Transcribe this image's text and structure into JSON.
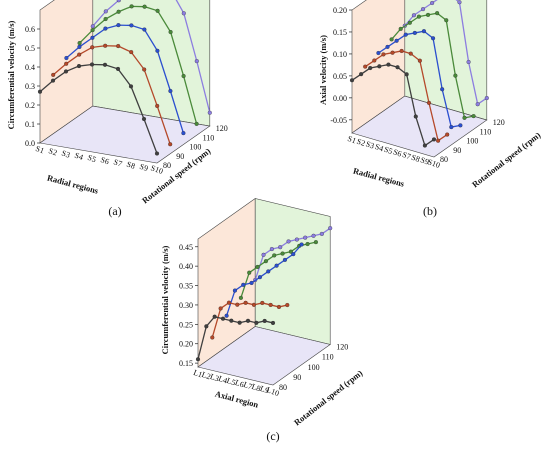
{
  "panels": [
    {
      "caption": "(a)",
      "title": "",
      "type": "line",
      "zlabel": "Circumferential velocity (m/s)",
      "xlabel": "Radial regions",
      "ylabel": "Rotational speed (rpm)",
      "zticks": [
        "0.0",
        "0.1",
        "0.2",
        "0.3",
        "0.4",
        "0.5",
        "0.6"
      ],
      "zlim": [
        0,
        0.7
      ],
      "xticks": [
        "S1",
        "S2",
        "S3",
        "S4",
        "S5",
        "S6",
        "S7",
        "S8",
        "S9",
        "S10"
      ],
      "yticks": [
        "80",
        "90",
        "100",
        "110",
        "120"
      ],
      "series": [
        {
          "rpm": 80,
          "color": "#3f3f3f",
          "values": [
            0.27,
            0.34,
            0.4,
            0.44,
            0.46,
            0.47,
            0.46,
            0.38,
            0.22,
            0.05
          ]
        },
        {
          "rpm": 90,
          "color": "#b5492a",
          "values": [
            0.31,
            0.38,
            0.44,
            0.49,
            0.51,
            0.52,
            0.5,
            0.42,
            0.24,
            0.05
          ]
        },
        {
          "rpm": 100,
          "color": "#2b4fcf",
          "values": [
            0.35,
            0.42,
            0.48,
            0.54,
            0.57,
            0.58,
            0.57,
            0.47,
            0.27,
            0.06
          ]
        },
        {
          "rpm": 110,
          "color": "#4a8a3a",
          "values": [
            0.38,
            0.46,
            0.53,
            0.58,
            0.62,
            0.63,
            0.62,
            0.52,
            0.3,
            0.06
          ]
        },
        {
          "rpm": 120,
          "color": "#8c7de0",
          "values": [
            0.42,
            0.51,
            0.58,
            0.64,
            0.68,
            0.69,
            0.68,
            0.57,
            0.33,
            0.07
          ]
        }
      ]
    },
    {
      "caption": "(b)",
      "title": "",
      "type": "line",
      "zlabel": "Axial velocity (m/s)",
      "xlabel": "Radial regions",
      "ylabel": "Rotational speed (rpm)",
      "zticks": [
        "-0.05",
        "0.00",
        "0.05",
        "0.10",
        "0.15",
        "0.20"
      ],
      "zlim": [
        -0.08,
        0.2
      ],
      "xticks": [
        "S1",
        "S2",
        "S3",
        "S4",
        "S5",
        "S6",
        "S7",
        "S8",
        "S9",
        "S10"
      ],
      "yticks": [
        "80",
        "90",
        "100",
        "110",
        "120"
      ],
      "series": [
        {
          "rpm": 80,
          "color": "#3f3f3f",
          "values": [
            0.04,
            0.06,
            0.08,
            0.09,
            0.1,
            0.1,
            0.09,
            0.0,
            -0.06,
            -0.04
          ]
        },
        {
          "rpm": 90,
          "color": "#b5492a",
          "values": [
            0.05,
            0.07,
            0.09,
            0.1,
            0.11,
            0.11,
            0.1,
            0.01,
            -0.07,
            -0.05
          ]
        },
        {
          "rpm": 100,
          "color": "#2b4fcf",
          "values": [
            0.06,
            0.08,
            0.1,
            0.12,
            0.13,
            0.14,
            0.13,
            0.02,
            -0.06,
            -0.05
          ]
        },
        {
          "rpm": 110,
          "color": "#4a8a3a",
          "values": [
            0.07,
            0.1,
            0.12,
            0.14,
            0.15,
            0.16,
            0.15,
            0.03,
            -0.06,
            -0.05
          ]
        },
        {
          "rpm": 120,
          "color": "#8c7de0",
          "values": [
            0.08,
            0.11,
            0.13,
            0.15,
            0.17,
            0.18,
            0.17,
            0.04,
            -0.05,
            -0.03
          ]
        }
      ]
    },
    {
      "caption": "(c)",
      "title": "",
      "type": "line",
      "zlabel": "Circumferential velocity (m/s)",
      "xlabel": "Axial region",
      "ylabel": "Rotational speed (rpm)",
      "zticks": [
        "0.15",
        "0.20",
        "0.25",
        "0.30",
        "0.35",
        "0.40",
        "0.45"
      ],
      "zlim": [
        0.14,
        0.47
      ],
      "xticks": [
        "L1",
        "L2",
        "L3",
        "L4",
        "L5",
        "L6",
        "L7",
        "L8",
        "L9",
        "L10"
      ],
      "yticks": [
        "80",
        "90",
        "100",
        "110",
        "120"
      ],
      "series": [
        {
          "rpm": 80,
          "color": "#3f3f3f",
          "values": [
            0.16,
            0.25,
            0.28,
            0.28,
            0.28,
            0.28,
            0.29,
            0.29,
            0.3,
            0.3
          ]
        },
        {
          "rpm": 90,
          "color": "#b5492a",
          "values": [
            0.19,
            0.27,
            0.29,
            0.29,
            0.3,
            0.3,
            0.31,
            0.31,
            0.31,
            0.32
          ]
        },
        {
          "rpm": 100,
          "color": "#2b4fcf",
          "values": [
            0.22,
            0.29,
            0.31,
            0.32,
            0.34,
            0.36,
            0.38,
            0.4,
            0.42,
            0.45
          ]
        },
        {
          "rpm": 110,
          "color": "#4a8a3a",
          "values": [
            0.24,
            0.31,
            0.33,
            0.35,
            0.37,
            0.38,
            0.39,
            0.41,
            0.42,
            0.43
          ]
        },
        {
          "rpm": 120,
          "color": "#8c7de0",
          "values": [
            0.26,
            0.33,
            0.35,
            0.36,
            0.38,
            0.39,
            0.4,
            0.41,
            0.42,
            0.44
          ]
        }
      ]
    }
  ],
  "chart_data": [
    {
      "type": "line",
      "caption": "(a)",
      "zlabel": "Circumferential velocity (m/s)",
      "xlabel": "Radial regions",
      "ylabel": "Rotational speed (rpm)",
      "categories": [
        "S1",
        "S2",
        "S3",
        "S4",
        "S5",
        "S6",
        "S7",
        "S8",
        "S9",
        "S10"
      ],
      "depth": [
        80,
        90,
        100,
        110,
        120
      ],
      "zlim": [
        0,
        0.7
      ],
      "series": [
        {
          "values": [
            0.27,
            0.34,
            0.4,
            0.44,
            0.46,
            0.47,
            0.46,
            0.38,
            0.22,
            0.05
          ]
        },
        {
          "values": [
            0.31,
            0.38,
            0.44,
            0.49,
            0.51,
            0.52,
            0.5,
            0.42,
            0.24,
            0.05
          ]
        },
        {
          "values": [
            0.35,
            0.42,
            0.48,
            0.54,
            0.57,
            0.58,
            0.57,
            0.47,
            0.27,
            0.06
          ]
        },
        {
          "values": [
            0.38,
            0.46,
            0.53,
            0.58,
            0.62,
            0.63,
            0.62,
            0.52,
            0.3,
            0.06
          ]
        },
        {
          "values": [
            0.42,
            0.51,
            0.58,
            0.64,
            0.68,
            0.69,
            0.68,
            0.57,
            0.33,
            0.07
          ]
        }
      ]
    },
    {
      "type": "line",
      "caption": "(b)",
      "zlabel": "Axial velocity (m/s)",
      "xlabel": "Radial regions",
      "ylabel": "Rotational speed (rpm)",
      "categories": [
        "S1",
        "S2",
        "S3",
        "S4",
        "S5",
        "S6",
        "S7",
        "S8",
        "S9",
        "S10"
      ],
      "depth": [
        80,
        90,
        100,
        110,
        120
      ],
      "zlim": [
        -0.08,
        0.2
      ],
      "series": [
        {
          "values": [
            0.04,
            0.06,
            0.08,
            0.09,
            0.1,
            0.1,
            0.09,
            0.0,
            -0.06,
            -0.04
          ]
        },
        {
          "values": [
            0.05,
            0.07,
            0.09,
            0.1,
            0.11,
            0.11,
            0.1,
            0.01,
            -0.07,
            -0.05
          ]
        },
        {
          "values": [
            0.06,
            0.08,
            0.1,
            0.12,
            0.13,
            0.14,
            0.13,
            0.02,
            -0.06,
            -0.05
          ]
        },
        {
          "values": [
            0.07,
            0.1,
            0.12,
            0.14,
            0.15,
            0.16,
            0.15,
            0.03,
            -0.06,
            -0.05
          ]
        },
        {
          "values": [
            0.08,
            0.11,
            0.13,
            0.15,
            0.17,
            0.18,
            0.17,
            0.04,
            -0.05,
            -0.03
          ]
        }
      ]
    },
    {
      "type": "line",
      "caption": "(c)",
      "zlabel": "Circumferential velocity (m/s)",
      "xlabel": "Axial region",
      "ylabel": "Rotational speed (rpm)",
      "categories": [
        "L1",
        "L2",
        "L3",
        "L4",
        "L5",
        "L6",
        "L7",
        "L8",
        "L9",
        "L10"
      ],
      "depth": [
        80,
        90,
        100,
        110,
        120
      ],
      "zlim": [
        0.14,
        0.47
      ],
      "series": [
        {
          "values": [
            0.16,
            0.25,
            0.28,
            0.28,
            0.28,
            0.28,
            0.29,
            0.29,
            0.3,
            0.3
          ]
        },
        {
          "values": [
            0.19,
            0.27,
            0.29,
            0.29,
            0.3,
            0.3,
            0.31,
            0.31,
            0.31,
            0.32
          ]
        },
        {
          "values": [
            0.22,
            0.29,
            0.31,
            0.32,
            0.34,
            0.36,
            0.38,
            0.4,
            0.42,
            0.45
          ]
        },
        {
          "values": [
            0.24,
            0.31,
            0.33,
            0.35,
            0.37,
            0.38,
            0.39,
            0.41,
            0.42,
            0.43
          ]
        },
        {
          "values": [
            0.26,
            0.33,
            0.35,
            0.36,
            0.38,
            0.39,
            0.4,
            0.41,
            0.42,
            0.44
          ]
        }
      ]
    }
  ]
}
